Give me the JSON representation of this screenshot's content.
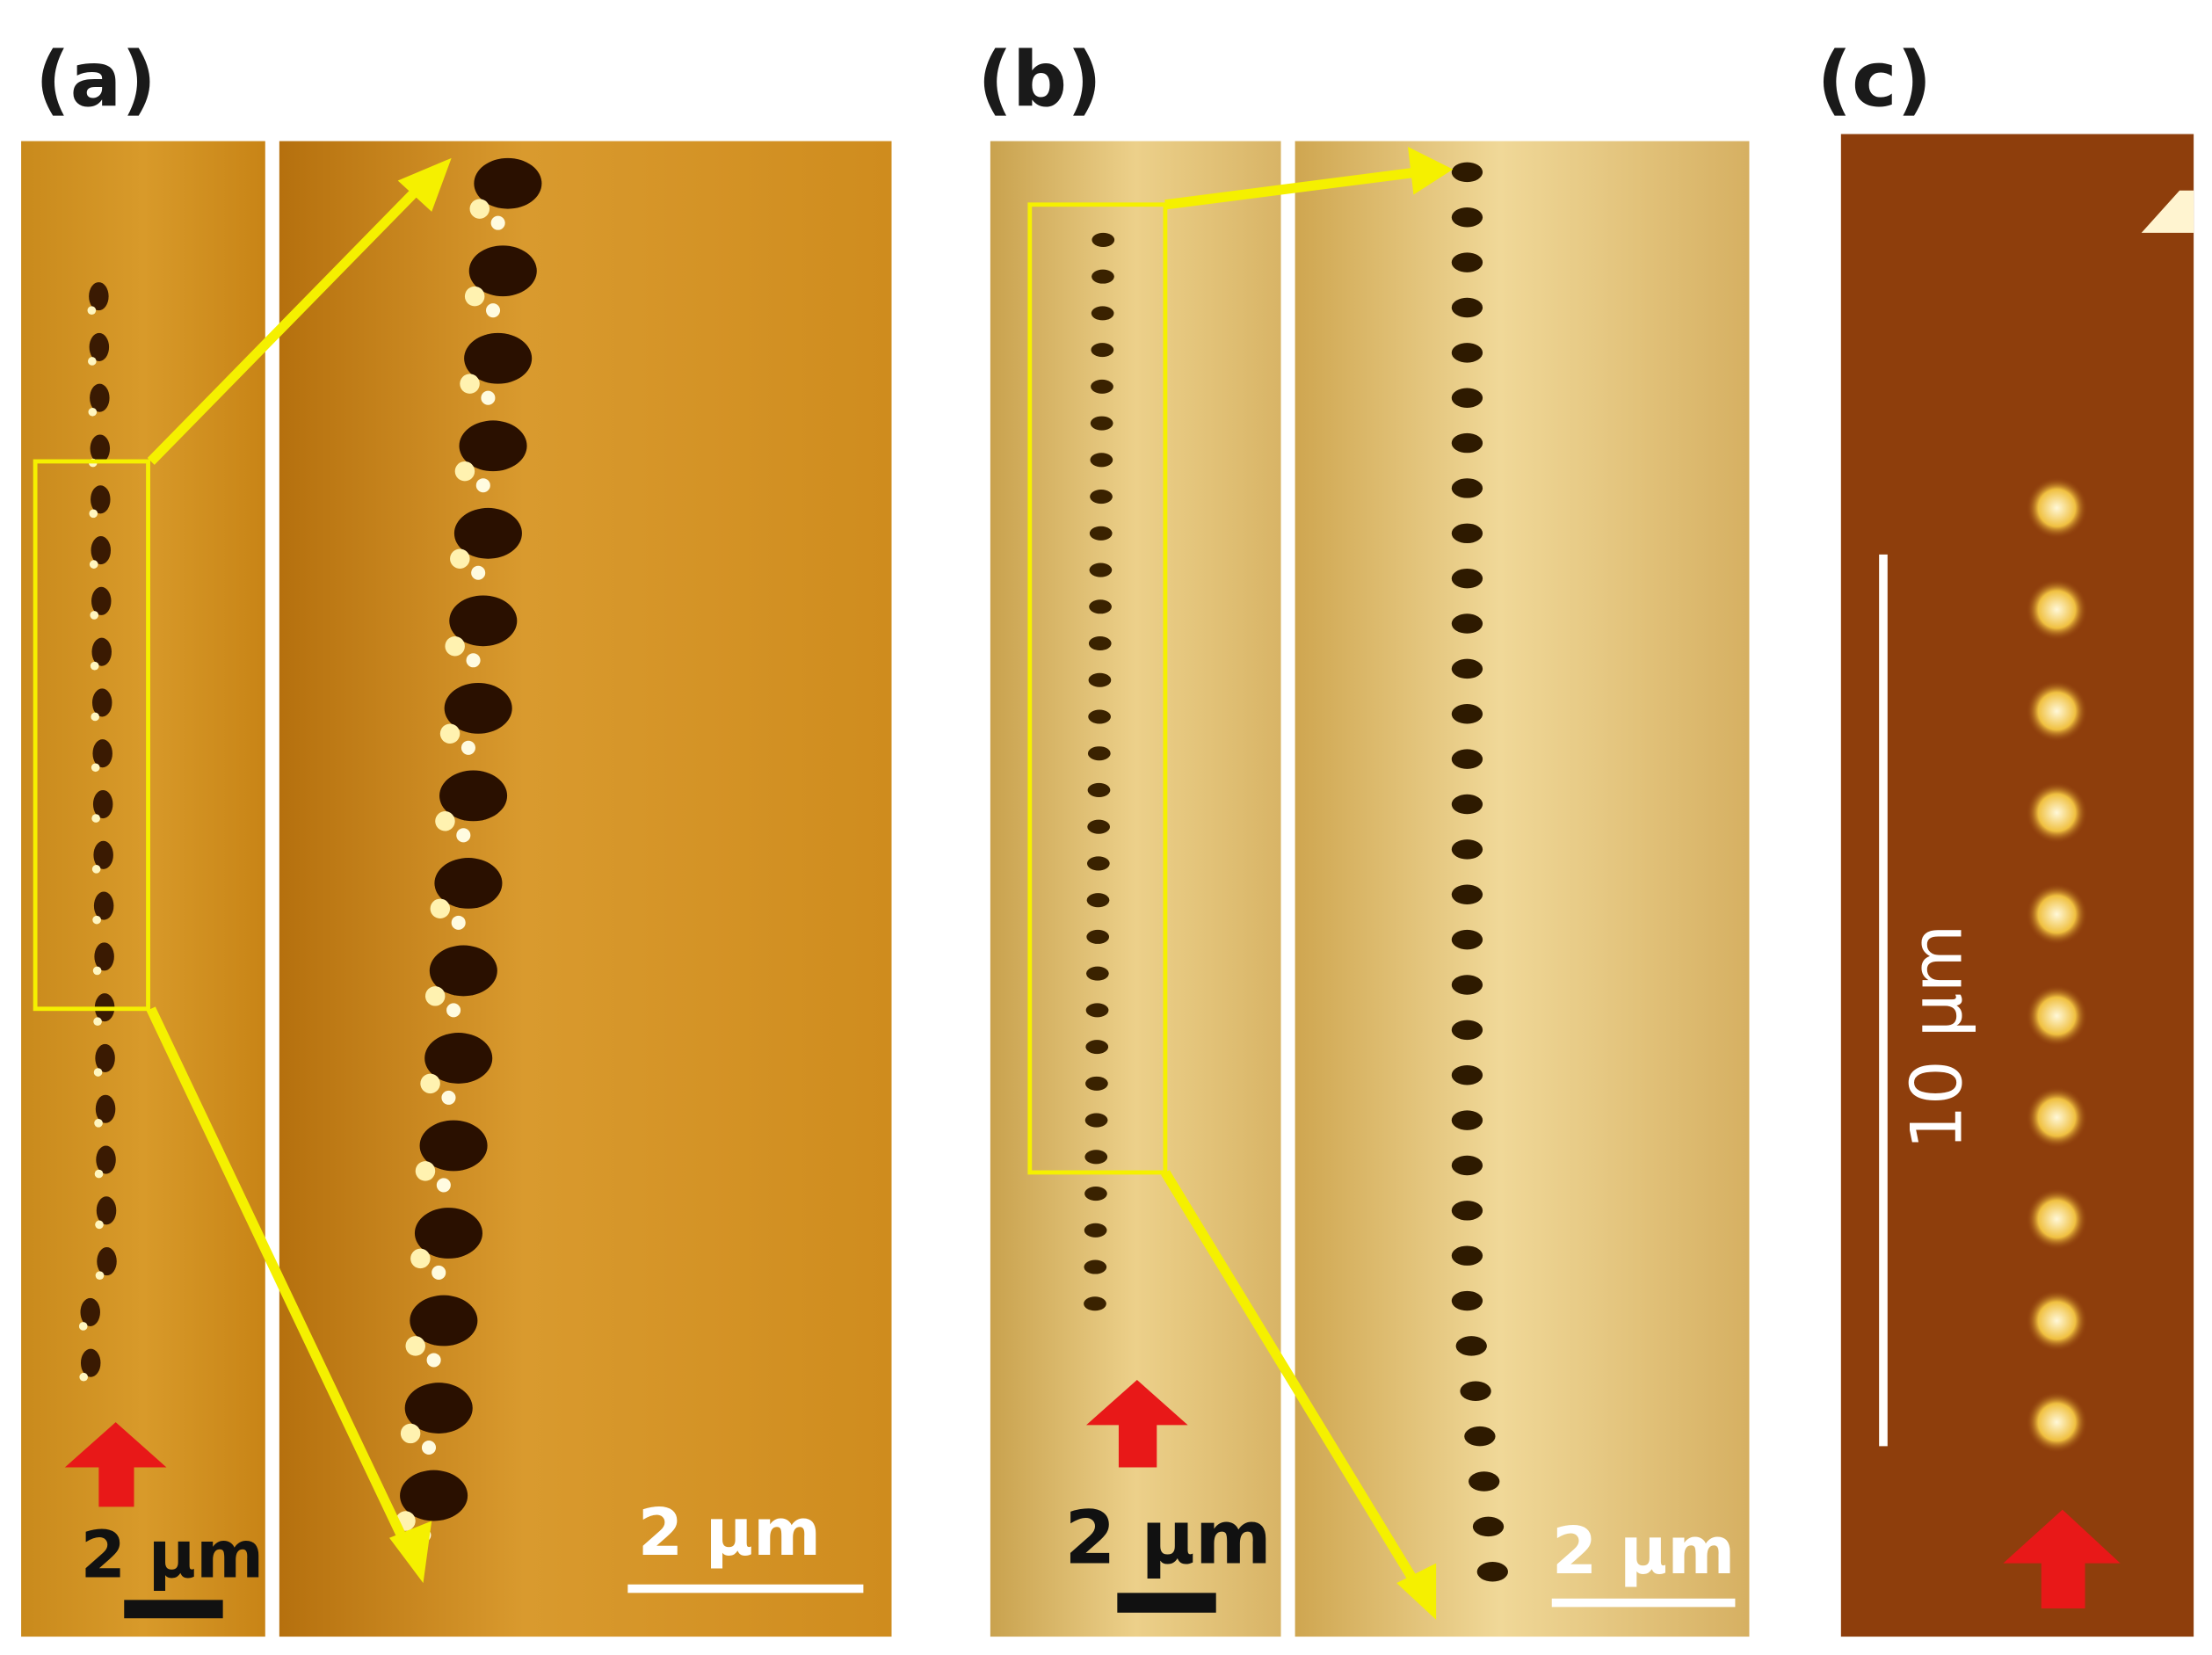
{
  "panels": [
    {
      "label": "(a)",
      "scale_bars": [
        "2 µm",
        "2 µm"
      ]
    },
    {
      "label": "(b)",
      "scale_bars": [
        "2 µm",
        "2 µm"
      ]
    },
    {
      "label": "(c)",
      "scale_bars": [
        "10 µm"
      ]
    }
  ]
}
